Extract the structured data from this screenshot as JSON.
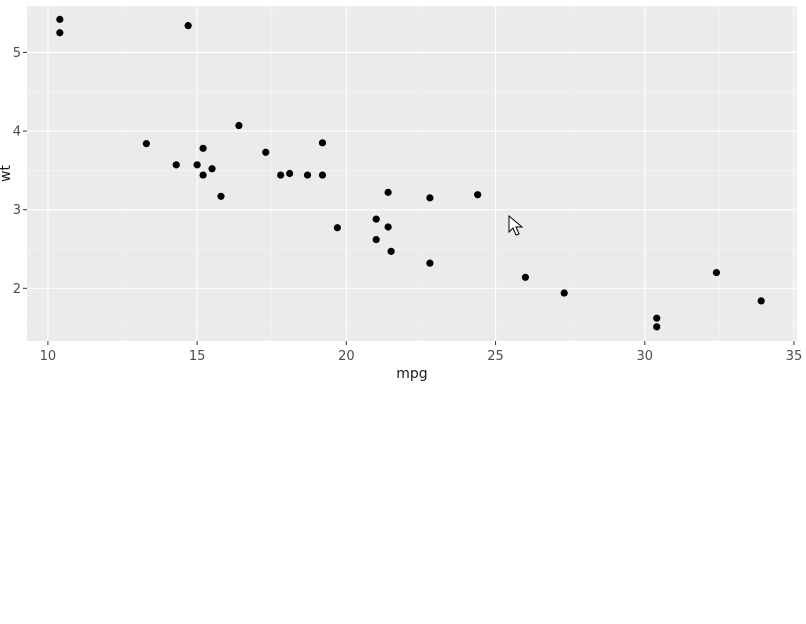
{
  "chart_data": {
    "type": "scatter",
    "title": "",
    "xlabel": "mpg",
    "ylabel": "wt",
    "xlim": [
      9.3,
      35.1
    ],
    "ylim": [
      1.33,
      5.59
    ],
    "x_ticks": [
      10,
      15,
      20,
      25,
      30,
      35
    ],
    "y_ticks": [
      2,
      3,
      4,
      5
    ],
    "grid": true,
    "background": "#ebebeb",
    "point_color": "#000000",
    "points": [
      {
        "x": 10.4,
        "y": 5.42
      },
      {
        "x": 10.4,
        "y": 5.25
      },
      {
        "x": 14.7,
        "y": 5.34
      },
      {
        "x": 13.3,
        "y": 3.84
      },
      {
        "x": 14.3,
        "y": 3.57
      },
      {
        "x": 15.0,
        "y": 3.57
      },
      {
        "x": 15.2,
        "y": 3.78
      },
      {
        "x": 15.2,
        "y": 3.44
      },
      {
        "x": 15.5,
        "y": 3.52
      },
      {
        "x": 15.8,
        "y": 3.17
      },
      {
        "x": 16.4,
        "y": 4.07
      },
      {
        "x": 17.3,
        "y": 3.73
      },
      {
        "x": 17.8,
        "y": 3.44
      },
      {
        "x": 18.1,
        "y": 3.46
      },
      {
        "x": 18.7,
        "y": 3.44
      },
      {
        "x": 19.2,
        "y": 3.85
      },
      {
        "x": 19.2,
        "y": 3.44
      },
      {
        "x": 19.7,
        "y": 2.77
      },
      {
        "x": 21.0,
        "y": 2.88
      },
      {
        "x": 21.0,
        "y": 2.62
      },
      {
        "x": 21.4,
        "y": 3.22
      },
      {
        "x": 21.4,
        "y": 2.78
      },
      {
        "x": 21.5,
        "y": 2.47
      },
      {
        "x": 22.8,
        "y": 3.15
      },
      {
        "x": 22.8,
        "y": 2.32
      },
      {
        "x": 24.4,
        "y": 3.19
      },
      {
        "x": 26.0,
        "y": 2.14
      },
      {
        "x": 27.3,
        "y": 1.94
      },
      {
        "x": 30.4,
        "y": 1.62
      },
      {
        "x": 30.4,
        "y": 1.51
      },
      {
        "x": 32.4,
        "y": 2.2
      },
      {
        "x": 33.9,
        "y": 1.84
      }
    ]
  }
}
